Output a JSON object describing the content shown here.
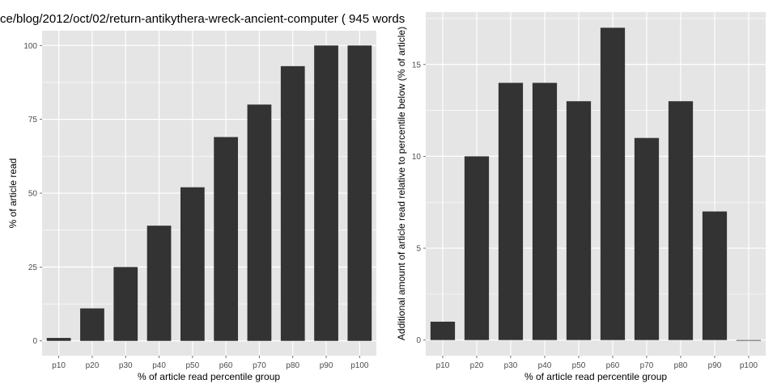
{
  "chart_data": [
    {
      "type": "bar",
      "title": "ce/blog/2012/oct/02/return-antikythera-wreck-ancient-computer ( 945 words",
      "xlabel": "% of article read percentile group",
      "ylabel": "% of article read",
      "categories": [
        "p10",
        "p20",
        "p30",
        "p40",
        "p50",
        "p60",
        "p70",
        "p80",
        "p90",
        "p100"
      ],
      "values": [
        1,
        11,
        25,
        39,
        52,
        69,
        80,
        93,
        100,
        100
      ],
      "ylim": [
        -5,
        105
      ],
      "yticks": [
        0,
        25,
        50,
        75,
        100
      ],
      "grid": true,
      "colors": {
        "bar": "#333333",
        "panel": "#e5e5e5",
        "grid": "#ffffff"
      }
    },
    {
      "type": "bar",
      "title": "",
      "xlabel": "% of article read percentile group",
      "ylabel": "Additional amount of article read relative to percentile below (% of article)",
      "categories": [
        "p10",
        "p20",
        "p30",
        "p40",
        "p50",
        "p60",
        "p70",
        "p80",
        "p90",
        "p100"
      ],
      "values": [
        1,
        10,
        14,
        14,
        13,
        17,
        11,
        13,
        7,
        0
      ],
      "ylim": [
        -0.85,
        17.85
      ],
      "yticks": [
        0,
        5,
        10,
        15
      ],
      "grid": true,
      "colors": {
        "bar": "#333333",
        "panel": "#e5e5e5",
        "grid": "#ffffff"
      }
    }
  ]
}
